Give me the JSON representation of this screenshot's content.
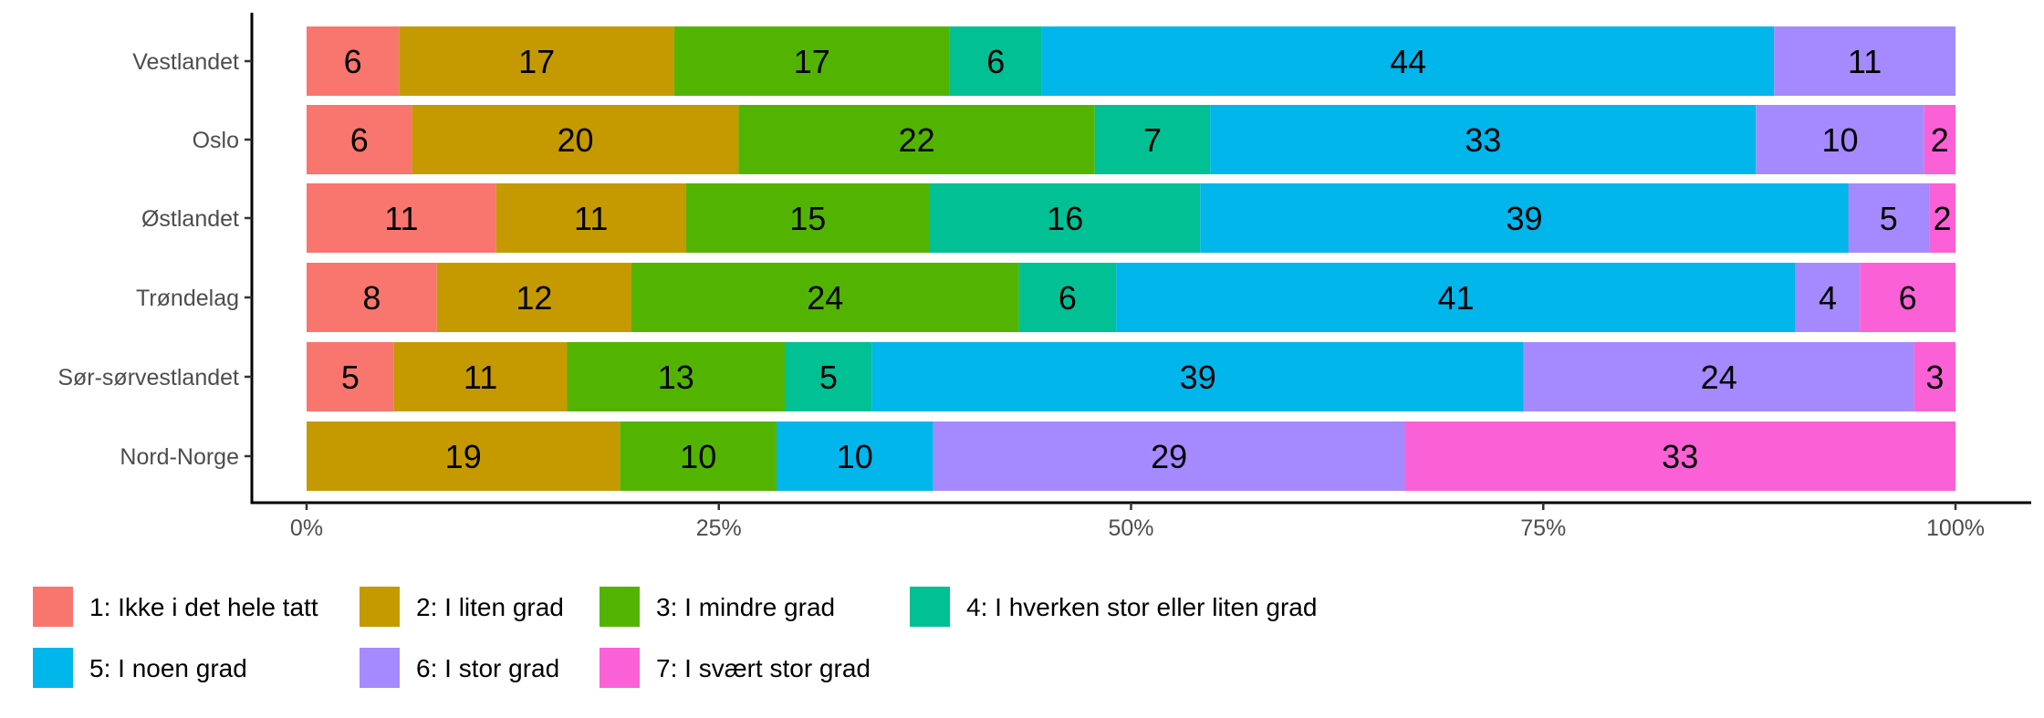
{
  "chart_data": {
    "type": "bar",
    "orientation": "horizontal",
    "stacked": "percent",
    "title": "",
    "xlabel": "",
    "ylabel": "",
    "xlim": [
      0,
      100
    ],
    "x_ticks": [
      "0%",
      "25%",
      "50%",
      "75%",
      "100%"
    ],
    "grid": false,
    "legend_position": "bottom",
    "categories": [
      "Vestlandet",
      "Oslo",
      "Østlandet",
      "Trøndelag",
      "Sør-sørvestlandet",
      "Nord-Norge"
    ],
    "series": [
      {
        "name": "1: Ikke i det hele tatt",
        "color": "#F8766D",
        "values": [
          5.6,
          6.4,
          11.5,
          7.9,
          5.3,
          0
        ]
      },
      {
        "name": "2: I liten grad",
        "color": "#C49A00",
        "values": [
          16.7,
          19.8,
          11.5,
          11.8,
          10.5,
          19.0
        ]
      },
      {
        "name": "3: I mindre grad",
        "color": "#53B400",
        "values": [
          16.7,
          21.6,
          14.8,
          23.5,
          13.2,
          9.5
        ]
      },
      {
        "name": "4: I hverken stor eller liten grad",
        "color": "#00C094",
        "values": [
          5.6,
          7.0,
          16.4,
          5.9,
          5.3,
          0
        ]
      },
      {
        "name": "5: I noen grad",
        "color": "#00B6EB",
        "values": [
          44.4,
          33.1,
          39.3,
          41.2,
          39.5,
          9.5
        ]
      },
      {
        "name": "6: I stor grad",
        "color": "#A58AFF",
        "values": [
          11.0,
          10.2,
          4.9,
          3.9,
          23.7,
          28.6
        ]
      },
      {
        "name": "7: I svært stor grad",
        "color": "#FB61D7",
        "values": [
          0,
          1.9,
          1.6,
          5.8,
          2.5,
          33.4
        ]
      }
    ],
    "data_labels": [
      [
        "6",
        "17",
        "17",
        "6",
        "44",
        "11",
        ""
      ],
      [
        "6",
        "20",
        "22",
        "7",
        "33",
        "10",
        "2"
      ],
      [
        "11",
        "11",
        "15",
        "16",
        "39",
        "5",
        "2"
      ],
      [
        "8",
        "12",
        "24",
        "6",
        "41",
        "4",
        "6"
      ],
      [
        "5",
        "11",
        "13",
        "5",
        "39",
        "24",
        "3"
      ],
      [
        "",
        "19",
        "10",
        "",
        "10",
        "29",
        "33"
      ]
    ]
  }
}
